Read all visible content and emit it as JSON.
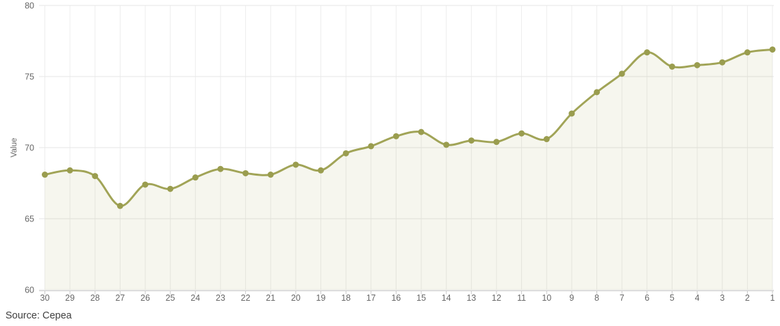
{
  "source": "Source: Cepea",
  "chart_data": {
    "type": "area",
    "title": "",
    "subtitle": "",
    "xlabel": "",
    "ylabel": "Value",
    "categories": [
      "30",
      "29",
      "28",
      "27",
      "26",
      "25",
      "24",
      "23",
      "22",
      "21",
      "20",
      "19",
      "18",
      "17",
      "16",
      "15",
      "14",
      "13",
      "12",
      "11",
      "10",
      "9",
      "8",
      "7",
      "6",
      "5",
      "4",
      "3",
      "2",
      "1"
    ],
    "values": [
      68.1,
      68.4,
      68.0,
      65.9,
      67.4,
      67.1,
      67.9,
      68.5,
      68.2,
      68.1,
      68.8,
      68.4,
      69.6,
      70.1,
      70.8,
      71.1,
      70.2,
      70.5,
      70.4,
      71.0,
      70.6,
      72.4,
      73.9,
      75.2,
      76.7,
      75.7,
      75.8,
      76.0,
      76.7,
      76.9
    ],
    "ylim": [
      60,
      80
    ],
    "yticks": [
      60,
      65,
      70,
      75,
      80
    ],
    "grid": true,
    "legend": false,
    "line_style": "spline",
    "markers": true,
    "colors": {
      "line": "#a1a457",
      "marker": "#9a9d4f",
      "area_fill": "rgba(162,165,88,0.10)",
      "grid_vertical": "#ededed",
      "grid_horizontal": "#e6e6e6",
      "axis_line": "#c9c9c9",
      "tick_label": "#666666",
      "axis_title": "#666666",
      "source_text": "#3f3f3f"
    }
  }
}
